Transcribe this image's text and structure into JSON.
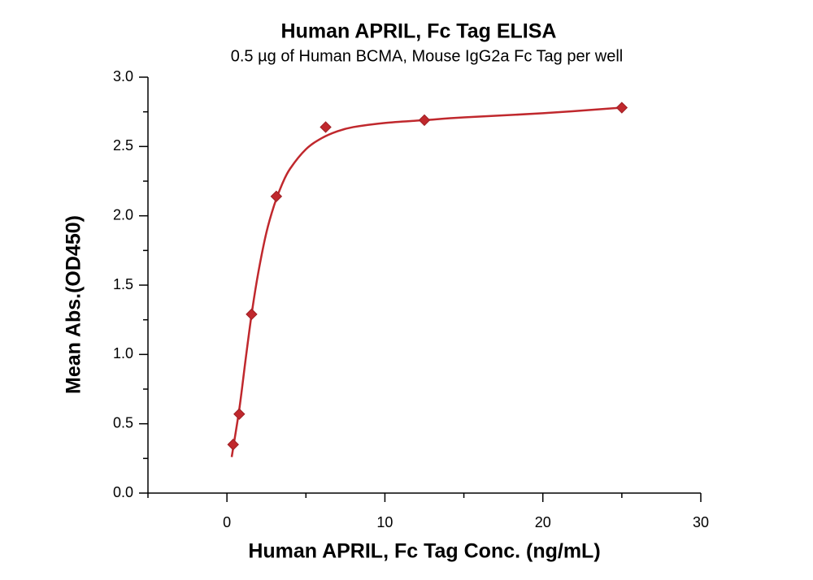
{
  "chart_data": {
    "type": "scatter",
    "title": "Human APRIL, Fc Tag ELISA",
    "subtitle": "0.5 µg of Human BCMA, Mouse IgG2a Fc Tag per well",
    "x_label": "Human APRIL, Fc Tag Conc. (ng/mL)",
    "y_label": "Mean Abs.(OD450)",
    "x": [
      0.39,
      0.78,
      1.56,
      3.125,
      6.25,
      12.5,
      25
    ],
    "values": [
      0.35,
      0.57,
      1.29,
      2.14,
      2.64,
      2.69,
      2.78
    ],
    "color": "#c0282d",
    "fit": {
      "x": [
        0.3,
        0.4,
        0.8,
        1.2,
        1.6,
        2,
        2.5,
        3,
        3.5,
        4,
        5,
        6,
        7,
        8,
        10,
        12.5,
        15,
        20,
        25
      ],
      "y": [
        0.26,
        0.33,
        0.62,
        0.98,
        1.32,
        1.6,
        1.88,
        2.08,
        2.23,
        2.34,
        2.48,
        2.56,
        2.61,
        2.64,
        2.67,
        2.69,
        2.71,
        2.74,
        2.78
      ],
      "color": "#c0282d"
    },
    "xlim": [
      -5,
      30
    ],
    "xticks": [
      0,
      10,
      20,
      30
    ],
    "xminorticks": [
      -5,
      5,
      15,
      25
    ],
    "ylim": [
      0,
      3
    ],
    "yticks": [
      {
        "value": 0,
        "label": "0.0"
      },
      0.5,
      {
        "value": 1,
        "label": "1.0"
      },
      1.5,
      {
        "value": 2,
        "label": "2.0"
      },
      2.5,
      {
        "value": 3,
        "label": "3.0"
      }
    ],
    "yminorticks": [
      0.25,
      0.75,
      1.25,
      1.75,
      2.25,
      2.75
    ],
    "grid": false
  }
}
